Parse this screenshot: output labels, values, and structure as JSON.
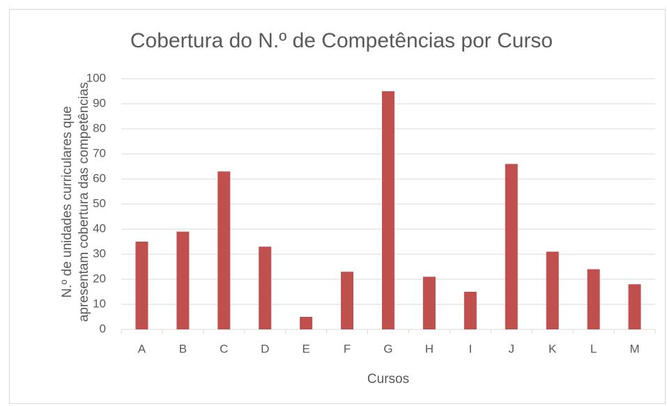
{
  "chart_data": {
    "type": "bar",
    "title": "Cobertura do N.º de Competências por Curso",
    "x_label": "Cursos",
    "y_label": [
      "N.º de unidades curriculares que",
      "apresentam cobertura das competências"
    ],
    "categories": [
      "A",
      "B",
      "C",
      "D",
      "E",
      "F",
      "G",
      "H",
      "I",
      "J",
      "K",
      "L",
      "M"
    ],
    "values": [
      35,
      39,
      63,
      33,
      5,
      23,
      95,
      21,
      15,
      66,
      31,
      24,
      18
    ],
    "color": "#c0504d",
    "ylim": [
      0,
      100
    ],
    "yticks": [
      0,
      10,
      20,
      30,
      40,
      50,
      60,
      70,
      80,
      90,
      100
    ],
    "grid": true
  }
}
